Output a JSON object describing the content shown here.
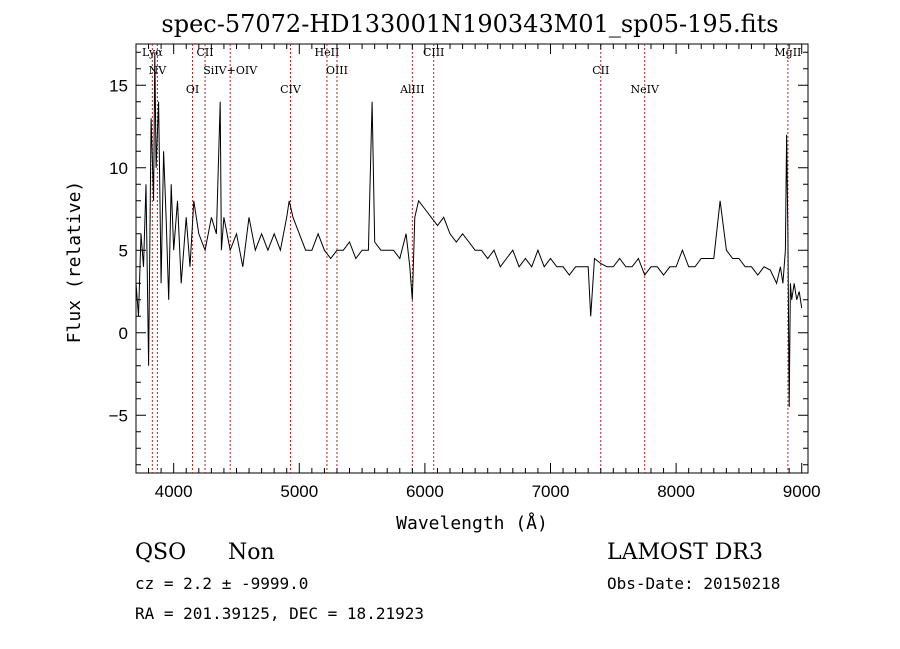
{
  "chart_data": {
    "type": "line",
    "title": "spec-57072-HD133001N190343M01_sp05-195.fits",
    "xlabel": "Wavelength (Å)",
    "ylabel": "Flux (relative)",
    "xlim": [
      3700,
      9050
    ],
    "ylim": [
      -8.5,
      17.5
    ],
    "xticks": [
      4000,
      5000,
      6000,
      7000,
      8000,
      9000
    ],
    "yticks": [
      -5,
      0,
      5,
      10,
      15
    ],
    "grid": false,
    "legend": "none",
    "series": [
      {
        "color": "#000000",
        "x": [
          3700,
          3720,
          3740,
          3760,
          3780,
          3800,
          3820,
          3840,
          3850,
          3860,
          3880,
          3900,
          3920,
          3940,
          3960,
          3980,
          4000,
          4030,
          4060,
          4100,
          4130,
          4160,
          4200,
          4250,
          4300,
          4340,
          4370,
          4380,
          4400,
          4450,
          4500,
          4550,
          4600,
          4650,
          4700,
          4750,
          4800,
          4850,
          4900,
          4920,
          4950,
          5000,
          5050,
          5100,
          5150,
          5200,
          5250,
          5300,
          5350,
          5400,
          5450,
          5500,
          5550,
          5580,
          5600,
          5650,
          5700,
          5750,
          5800,
          5850,
          5880,
          5900,
          5920,
          5950,
          6000,
          6050,
          6100,
          6150,
          6200,
          6250,
          6300,
          6350,
          6400,
          6450,
          6500,
          6550,
          6600,
          6650,
          6700,
          6750,
          6800,
          6850,
          6900,
          6950,
          7000,
          7050,
          7100,
          7150,
          7200,
          7250,
          7300,
          7320,
          7350,
          7400,
          7450,
          7500,
          7550,
          7600,
          7650,
          7700,
          7750,
          7800,
          7850,
          7900,
          7950,
          8000,
          8050,
          8100,
          8150,
          8200,
          8250,
          8300,
          8350,
          8400,
          8450,
          8500,
          8550,
          8600,
          8650,
          8700,
          8750,
          8800,
          8830,
          8850,
          8870,
          8880,
          8890,
          8900,
          8910,
          8920,
          8940,
          8960,
          8980,
          9000
        ],
        "y": [
          3,
          1,
          6,
          4,
          9,
          -2,
          13,
          8,
          17,
          10,
          14,
          3,
          11,
          7,
          2,
          9,
          5,
          8,
          3,
          7,
          4,
          8,
          6,
          5,
          7,
          6,
          14,
          5,
          7,
          5,
          6,
          4,
          7,
          5,
          6,
          5,
          6,
          5,
          7,
          8,
          7,
          6,
          5,
          5,
          6,
          5,
          4.5,
          5,
          5,
          5.5,
          4.5,
          5,
          5,
          14,
          5.5,
          5,
          5,
          5,
          4.5,
          6,
          4,
          2,
          7,
          8,
          7.5,
          7,
          6.5,
          7,
          6,
          5.5,
          6,
          5.5,
          5,
          5,
          4.5,
          5,
          4,
          4.5,
          5,
          4,
          4.5,
          4,
          5,
          4,
          4.5,
          4,
          4,
          3.5,
          4,
          4,
          4,
          1,
          4.5,
          4.2,
          4,
          4,
          4.5,
          4,
          4,
          4.5,
          3.5,
          4,
          4,
          3.5,
          4,
          4,
          5,
          4,
          4,
          4.5,
          4.5,
          4.5,
          8,
          5,
          4.5,
          4.5,
          4,
          4,
          3.5,
          4,
          3.8,
          3,
          4,
          3,
          5,
          12,
          6,
          -4.5,
          3,
          2,
          3,
          2,
          2.5,
          1.5
        ]
      }
    ],
    "lines": [
      {
        "label": "Lyα",
        "x": 3830
      },
      {
        "label": "NV",
        "x": 3870
      },
      {
        "label": "OI",
        "x": 4150
      },
      {
        "label": "CII",
        "x": 4250
      },
      {
        "label": "SiIV+OIV",
        "x": 4450
      },
      {
        "label": "CIV",
        "x": 4930
      },
      {
        "label": "HeII",
        "x": 5220
      },
      {
        "label": "OIII",
        "x": 5300
      },
      {
        "label": "AlIII",
        "x": 5900
      },
      {
        "label": "CIII",
        "x": 6070
      },
      {
        "label": "CII",
        "x": 7400
      },
      {
        "label": "NeIV",
        "x": 7750
      },
      {
        "label": "MgII",
        "x": 8890
      }
    ]
  },
  "info": {
    "class": "QSO",
    "subclass": "Non",
    "cz": "cz = 2.2 ± -9999.0",
    "coords": "RA = 201.39125, DEC =  18.21923",
    "survey": "LAMOST DR3",
    "obsdate": "Obs-Date: 20150218"
  }
}
